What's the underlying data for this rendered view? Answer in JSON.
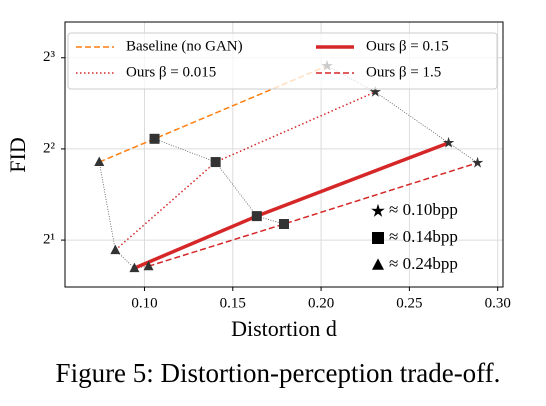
{
  "chart_data": {
    "type": "line",
    "caption": "Figure 5: Distortion-perception trade-off.",
    "xlabel": "Distortion d",
    "ylabel": "FID",
    "log_y": true,
    "log_base": 2,
    "grid": true,
    "xlim": [
      0.055,
      0.303
    ],
    "ylim": [
      1.4,
      10.5
    ],
    "xticks": [
      {
        "value": 0.1,
        "label": "0.10"
      },
      {
        "value": 0.15,
        "label": "0.15"
      },
      {
        "value": 0.2,
        "label": "0.20"
      },
      {
        "value": 0.25,
        "label": "0.25"
      },
      {
        "value": 0.3,
        "label": "0.30"
      }
    ],
    "yticks": [
      {
        "value": 2,
        "label": "2¹"
      },
      {
        "value": 4,
        "label": "2²"
      },
      {
        "value": 8,
        "label": "2³"
      }
    ],
    "legend_position": "upper",
    "marker_color": "#333333",
    "connector_color": "#555555",
    "rates": [
      {
        "label": "≈ 0.24bpp",
        "marker": "triangle"
      },
      {
        "label": "≈ 0.14bpp",
        "marker": "square"
      },
      {
        "label": "≈ 0.10bpp",
        "marker": "star"
      }
    ],
    "series": [
      {
        "name": "Baseline (no GAN)",
        "color": "#ff7f0e",
        "style": "dashed",
        "width": 1.5,
        "x": [
          0.0744,
          0.1057,
          0.2034
        ],
        "values": [
          3.62,
          4.32,
          7.52
        ]
      },
      {
        "name": "Ours β = 0.015",
        "color": "#d62728",
        "style": "dotted",
        "width": 1.5,
        "x": [
          0.0835,
          0.1403,
          0.2307
        ],
        "values": [
          1.853,
          3.62,
          6.17
        ]
      },
      {
        "name": "Ours β = 0.15",
        "color": "#d62728",
        "style": "solid",
        "width": 3.5,
        "x": [
          0.0943,
          0.1636,
          0.2722
        ],
        "values": [
          1.616,
          2.4,
          4.19
        ]
      },
      {
        "name": "Ours β = 1.5",
        "color": "#d62728",
        "style": "dashed",
        "width": 1.5,
        "x": [
          0.1023,
          0.179,
          0.2886
        ],
        "values": [
          1.64,
          2.26,
          3.6
        ]
      }
    ]
  }
}
